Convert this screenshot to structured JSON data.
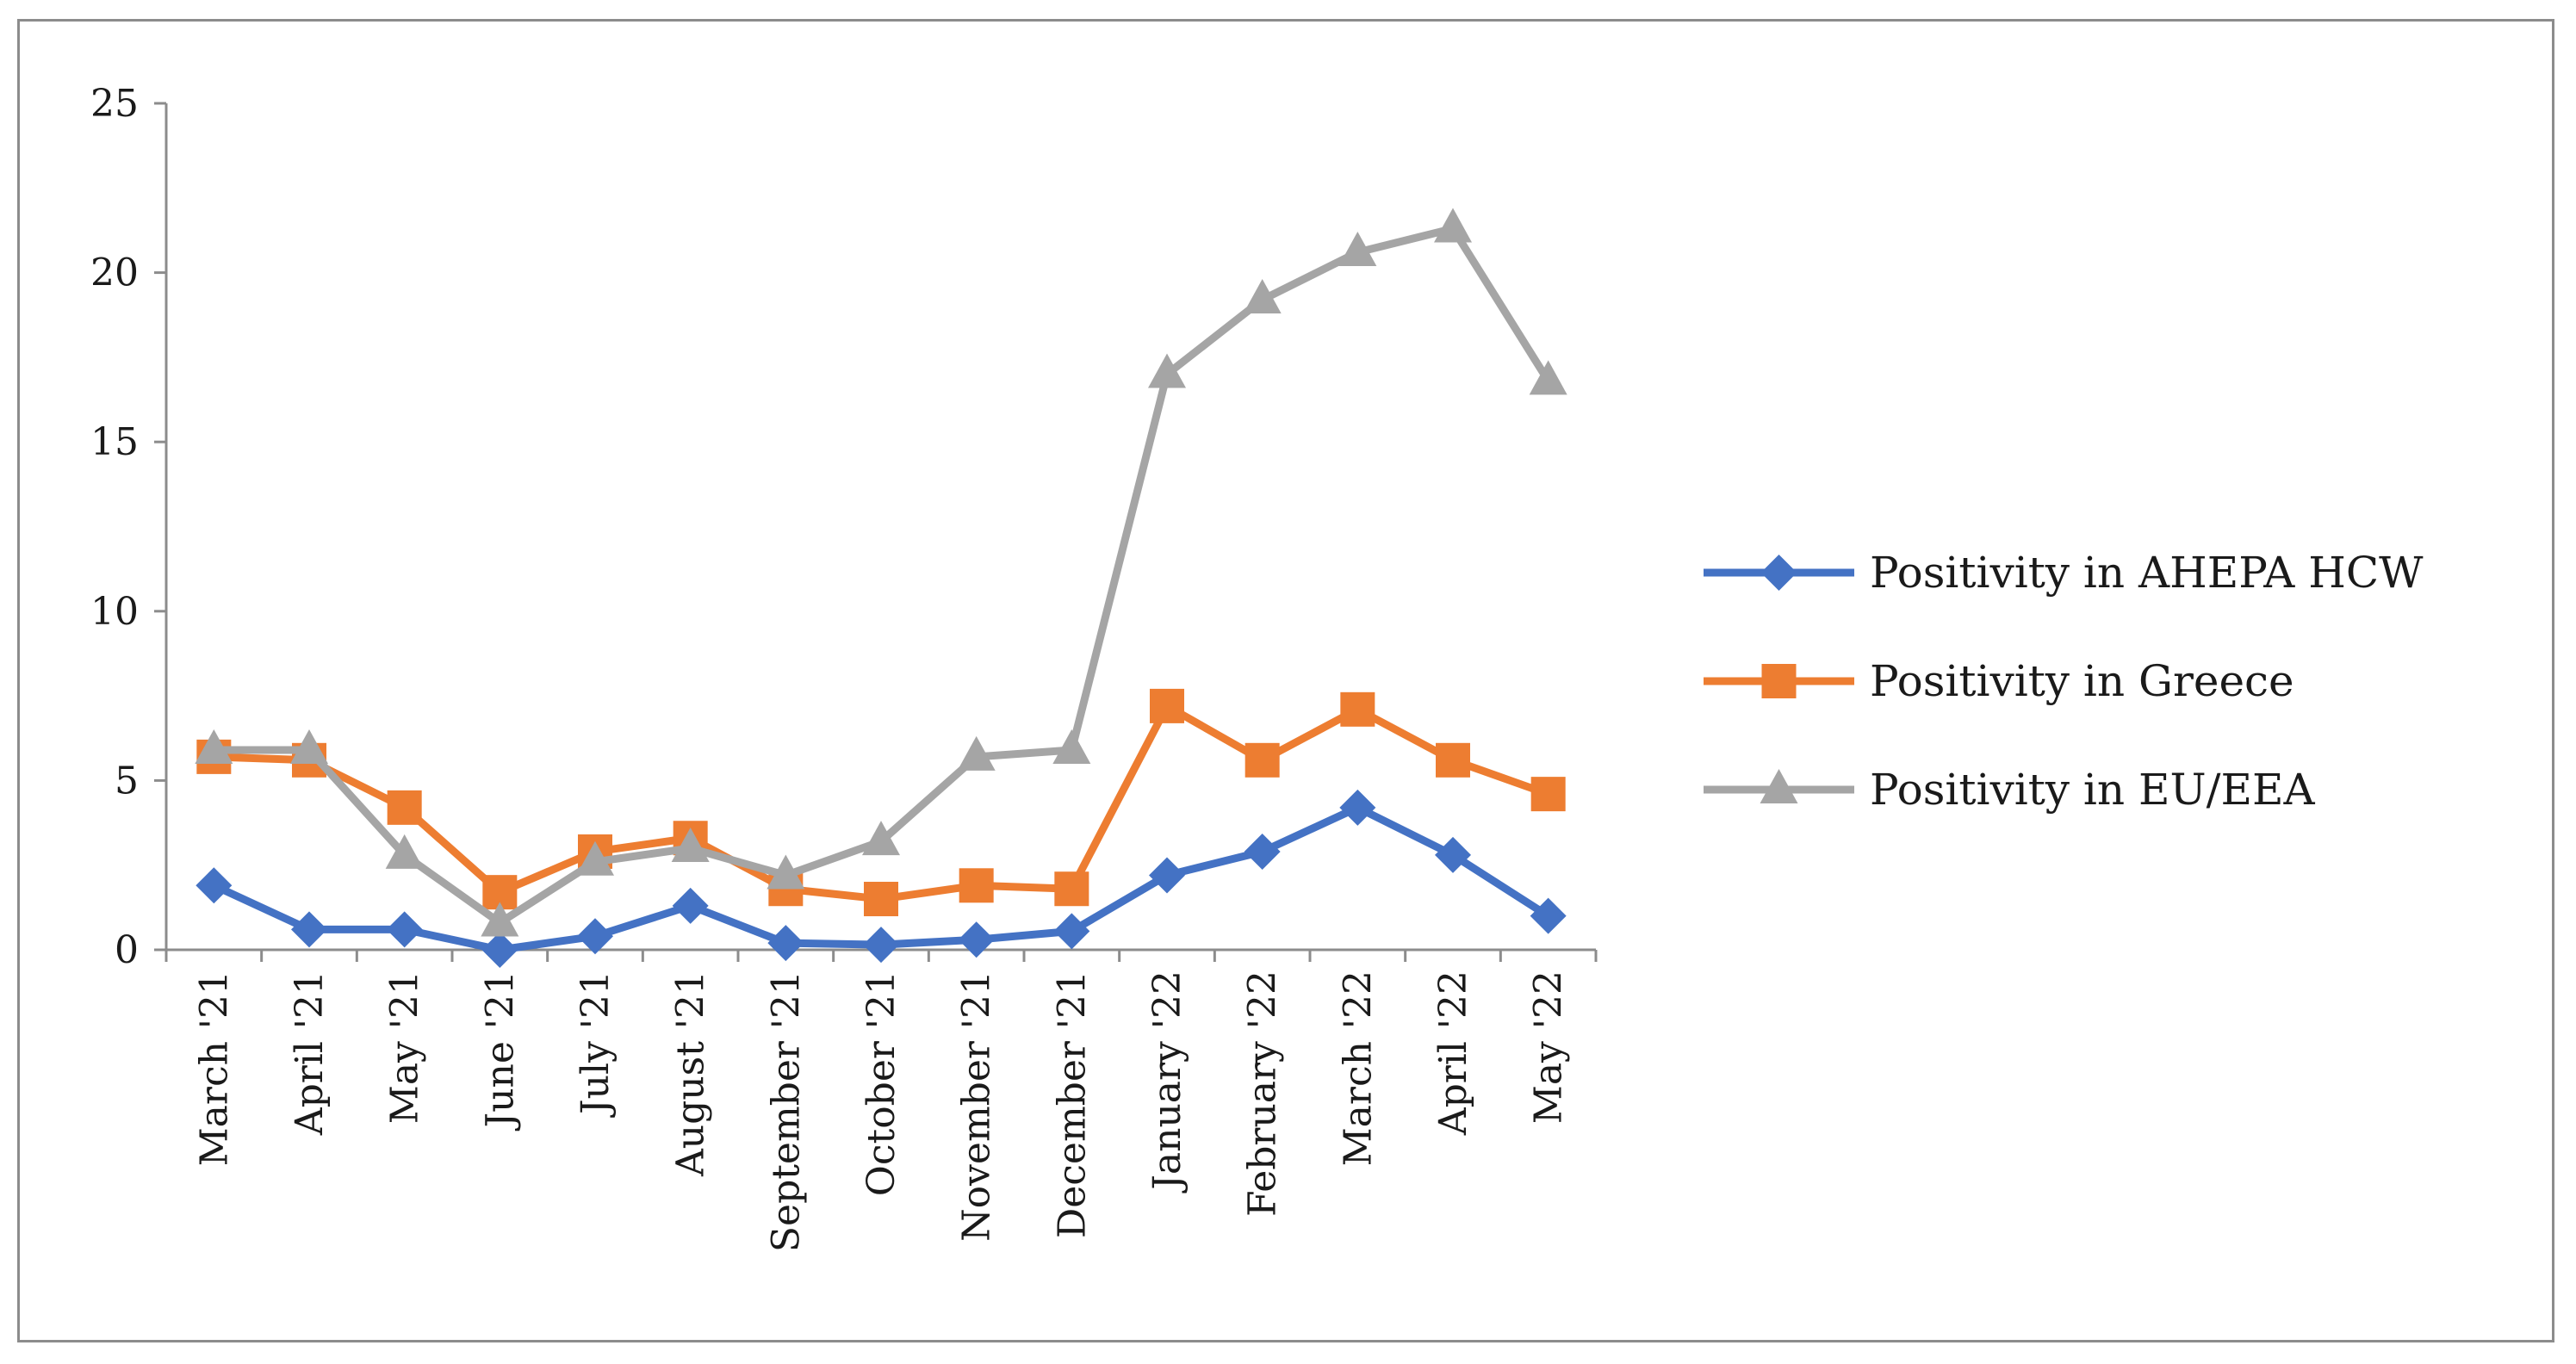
{
  "chart_data": {
    "type": "line",
    "title": "",
    "xlabel": "",
    "ylabel": "",
    "ylim": [
      0,
      25
    ],
    "yticks": [
      0,
      5,
      10,
      15,
      20,
      25
    ],
    "grid": false,
    "legend_position": "right",
    "categories": [
      "March '21",
      "April  '21",
      "May '21",
      "June '21",
      "July '21",
      "August '21",
      "September '21",
      "October '21",
      "November '21",
      "December '21",
      "January '22",
      "February '22",
      "March '22",
      "April '22",
      "May '22"
    ],
    "series": [
      {
        "name": "Positivity in AHEPA HCW",
        "color": "#4472c4",
        "marker": "diamond",
        "values": [
          1.9,
          0.6,
          0.6,
          0.0,
          0.4,
          1.3,
          0.2,
          0.15,
          0.3,
          0.55,
          2.2,
          2.9,
          4.2,
          2.8,
          1.0
        ]
      },
      {
        "name": "Positivity in Greece",
        "color": "#ed7d31",
        "marker": "square",
        "values": [
          5.7,
          5.6,
          4.2,
          1.7,
          2.9,
          3.3,
          1.8,
          1.5,
          1.9,
          1.8,
          7.2,
          5.6,
          7.1,
          5.6,
          4.6
        ]
      },
      {
        "name": "Positivity in EU/EEA",
        "color": "#a5a5a5",
        "marker": "triangle",
        "values": [
          5.9,
          5.9,
          2.8,
          0.8,
          2.6,
          3.0,
          2.2,
          3.2,
          5.7,
          5.9,
          17.0,
          19.2,
          20.6,
          21.3,
          16.8
        ]
      }
    ]
  }
}
